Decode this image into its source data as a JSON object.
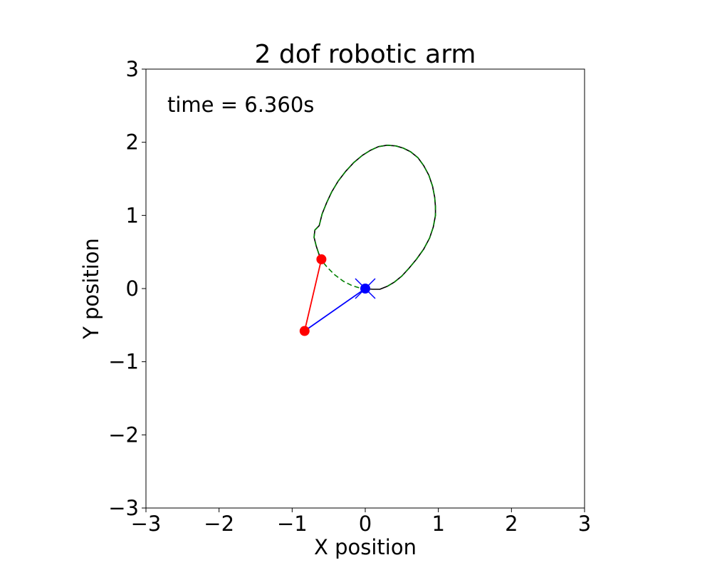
{
  "chart_data": {
    "type": "line",
    "title": "2 dof robotic arm",
    "xlabel": "X position",
    "ylabel": "Y position",
    "xlim": [
      -3,
      3
    ],
    "ylim": [
      -3,
      3
    ],
    "xticks": [
      -3,
      -2,
      -1,
      0,
      1,
      2,
      3
    ],
    "yticks": [
      -3,
      -2,
      -1,
      0,
      1,
      2,
      3
    ],
    "grid": false,
    "annotations": [
      {
        "text": "time = 6.360s"
      }
    ],
    "series": [
      {
        "type": "line",
        "style": "solid",
        "color": "#000000",
        "trace": "target",
        "points": [
          [
            0,
            0
          ],
          [
            0.1,
            -0.01
          ],
          [
            0.2,
            -0.01
          ],
          [
            0.3,
            0.03
          ],
          [
            0.4,
            0.09
          ],
          [
            0.5,
            0.17
          ],
          [
            0.6,
            0.28
          ],
          [
            0.7,
            0.4
          ],
          [
            0.8,
            0.54
          ],
          [
            0.88,
            0.69
          ],
          [
            0.93,
            0.84
          ],
          [
            0.96,
            1.0
          ],
          [
            0.96,
            1.12
          ],
          [
            0.95,
            1.25
          ],
          [
            0.92,
            1.4
          ],
          [
            0.87,
            1.55
          ],
          [
            0.8,
            1.68
          ],
          [
            0.72,
            1.79
          ],
          [
            0.62,
            1.87
          ],
          [
            0.52,
            1.92
          ],
          [
            0.42,
            1.95
          ],
          [
            0.3,
            1.96
          ],
          [
            0.18,
            1.94
          ],
          [
            0.07,
            1.89
          ],
          [
            -0.04,
            1.82
          ],
          [
            -0.16,
            1.72
          ],
          [
            -0.27,
            1.6
          ],
          [
            -0.37,
            1.47
          ],
          [
            -0.46,
            1.32
          ],
          [
            -0.53,
            1.17
          ],
          [
            -0.59,
            1.02
          ],
          [
            -0.63,
            0.86
          ],
          [
            -0.69,
            0.8
          ],
          [
            -0.7,
            0.7
          ],
          [
            -0.67,
            0.58
          ],
          [
            -0.63,
            0.46
          ],
          [
            -0.61,
            0.4
          ]
        ]
      },
      {
        "type": "line",
        "style": "dashed",
        "color": "#008000",
        "trace": "end-effector path",
        "points": [
          [
            0.3,
            0.03
          ],
          [
            0.4,
            0.09
          ],
          [
            0.5,
            0.17
          ],
          [
            0.6,
            0.28
          ],
          [
            0.7,
            0.4
          ],
          [
            0.8,
            0.54
          ],
          [
            0.88,
            0.69
          ],
          [
            0.93,
            0.84
          ],
          [
            0.96,
            1.0
          ],
          [
            0.96,
            1.12
          ],
          [
            0.95,
            1.25
          ],
          [
            0.92,
            1.4
          ],
          [
            0.87,
            1.55
          ],
          [
            0.8,
            1.68
          ],
          [
            0.72,
            1.79
          ],
          [
            0.62,
            1.87
          ],
          [
            0.52,
            1.92
          ],
          [
            0.42,
            1.95
          ],
          [
            0.3,
            1.96
          ],
          [
            0.18,
            1.94
          ],
          [
            0.07,
            1.89
          ],
          [
            -0.04,
            1.82
          ],
          [
            -0.16,
            1.72
          ],
          [
            -0.27,
            1.6
          ],
          [
            -0.37,
            1.47
          ],
          [
            -0.46,
            1.32
          ],
          [
            -0.53,
            1.17
          ],
          [
            -0.59,
            1.02
          ],
          [
            -0.63,
            0.86
          ],
          [
            -0.69,
            0.8
          ],
          [
            -0.7,
            0.7
          ],
          [
            -0.67,
            0.58
          ],
          [
            -0.63,
            0.46
          ],
          [
            -0.61,
            0.4
          ],
          [
            -0.52,
            0.29
          ],
          [
            -0.42,
            0.19
          ],
          [
            -0.3,
            0.1
          ],
          [
            -0.18,
            0.04
          ],
          [
            -0.08,
            0.01
          ],
          [
            0,
            0
          ]
        ]
      },
      {
        "type": "segment",
        "color": "#0000ff",
        "link": "link 1",
        "points": [
          [
            0,
            0
          ],
          [
            -0.83,
            -0.58
          ]
        ]
      },
      {
        "type": "segment",
        "color": "#ff0000",
        "link": "link 2",
        "points": [
          [
            -0.83,
            -0.58
          ],
          [
            -0.6,
            0.4
          ]
        ]
      }
    ],
    "joints": [
      {
        "x": -0.83,
        "y": -0.58,
        "color": "#ff0000",
        "marker": "circle"
      },
      {
        "x": -0.6,
        "y": 0.4,
        "color": "#ff0000",
        "marker": "circle"
      },
      {
        "x": 0,
        "y": 0,
        "color": "#0000ff",
        "marker": "circle"
      }
    ],
    "base_marker": {
      "x": 0,
      "y": 0,
      "color": "#0000ff",
      "marker": "x"
    }
  }
}
